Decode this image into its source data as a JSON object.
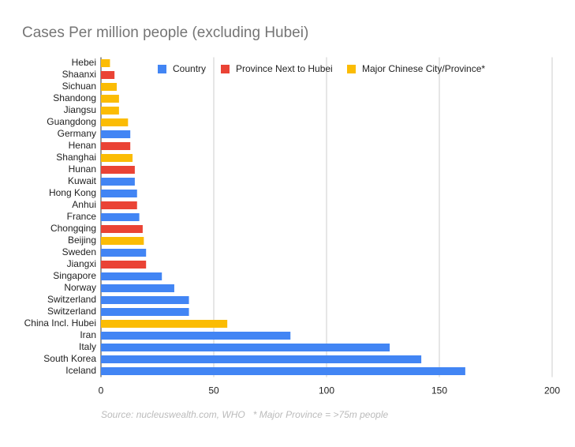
{
  "chart_data": {
    "type": "bar",
    "orientation": "horizontal",
    "title": "Cases Per million people (excluding Hubei)",
    "note": "Source: nucleuswealth.com, WHO   * Major Province = >75m people",
    "categories": [
      "Hebei",
      "Shaanxi",
      "Sichuan",
      "Shandong",
      "Jiangsu",
      "Guangdong",
      "Germany",
      "Henan",
      "Shanghai",
      "Hunan",
      "Kuwait",
      "Hong Kong",
      "Anhui",
      "France",
      "Chongqing",
      "Beijing",
      "Sweden",
      "Jiangxi",
      "Singapore",
      "Norway",
      "Switzerland",
      "Switzerland",
      "China Incl. Hubei",
      "Iran",
      "Italy",
      "South Korea",
      "Iceland"
    ],
    "series": [
      {
        "name": "Country",
        "color": "#4285f4",
        "values": [
          null,
          null,
          null,
          null,
          null,
          null,
          13,
          null,
          null,
          null,
          15,
          16,
          null,
          17,
          null,
          null,
          20,
          null,
          27,
          32.5,
          39,
          39,
          null,
          84,
          128,
          142,
          161.5
        ]
      },
      {
        "name": "Province Next to Hubei",
        "color": "#ea4335",
        "values": [
          null,
          6,
          null,
          null,
          null,
          null,
          null,
          13,
          null,
          15,
          null,
          null,
          16,
          null,
          18.5,
          null,
          null,
          20,
          null,
          null,
          null,
          null,
          null,
          null,
          null,
          null,
          null
        ]
      },
      {
        "name": "Major Chinese City/Province*",
        "color": "#fbbc04",
        "values": [
          4,
          null,
          7,
          8,
          8,
          12,
          null,
          null,
          14,
          null,
          null,
          null,
          null,
          null,
          null,
          19,
          null,
          null,
          null,
          null,
          null,
          null,
          56,
          null,
          null,
          null,
          null
        ]
      }
    ],
    "xlim": [
      0,
      200
    ],
    "xticks": [
      0,
      50,
      100,
      150,
      200
    ],
    "grid": true,
    "legend": "top"
  }
}
